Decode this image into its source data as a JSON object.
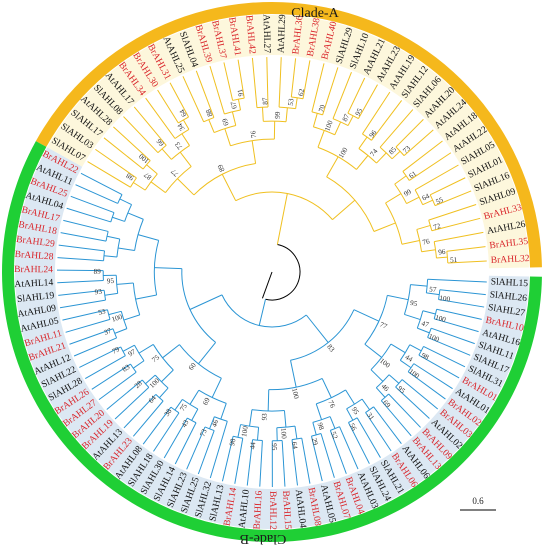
{
  "colors": {
    "cladeA_ring": "#f5b81c",
    "cladeA_fill": "#fdf7dc",
    "cladeA_branch": "#f0c020",
    "cladeB_ring": "#1fcf35",
    "cladeB_fill": "#dce8f3",
    "cladeB_branch": "#2b95d4",
    "label_highlight": "#d9252a",
    "label_default": "#111111"
  },
  "clades": {
    "cladeA": {
      "label": "Clade-A"
    },
    "cladeB": {
      "label": "Clade-B"
    }
  },
  "scale_bar": {
    "label": "0.6"
  },
  "leavesA": [
    "SlAHL07",
    "SlAHL03",
    "SlAHL17",
    "AtAHL28",
    "SlAHL08",
    "AtAHL17",
    "BrAHL34",
    "BrAHL30",
    "BrAHL31",
    "AtAHL25",
    "SlAHL04",
    "BrAHL39",
    "BrAHL37",
    "BrAHL41",
    "BrAHL42",
    "AtAHL27",
    "AtAHL29",
    "BrAHL36",
    "BrAHL38",
    "BrAHL40",
    "SlAHL29",
    "SlAHL10",
    "AtAHL21",
    "AtAHL23",
    "AtAHL19",
    "SlAHL12",
    "SlAHL06",
    "AtAHL20",
    "AtAHL24",
    "AtAHL18",
    "AtAHL22",
    "SlAHL05",
    "SlAHL01",
    "SlAHL16",
    "SlAHL09",
    "BrAHL33",
    "AtAHL26",
    "BrAHL35",
    "BrAHL32"
  ],
  "leavesB": [
    "SlAHL15",
    "SlAHL26",
    "SlAHL27",
    "BrAHL10",
    "AtAHL16",
    "SlAHL11",
    "SlAHL17",
    "SlAHL31",
    "BrAHL01",
    "AtAHL01",
    "BrAHL02",
    "BrAHL03",
    "AtAHL02",
    "BrAHL09",
    "BrAHL13",
    "AtAHL06",
    "BrAHL06",
    "SlAHL21",
    "SlAHL24",
    "AtAHL03",
    "BrAHL04",
    "BrAHL07",
    "AtAHL05",
    "BrAHL08",
    "AtAHL04",
    "BrAHL15",
    "BrAHL12",
    "BrAHL16",
    "AtAHL10",
    "BrAHL14",
    "SlAHL13",
    "SlAHL32",
    "SlAHL25",
    "SlAHL23",
    "SlAHL14",
    "SlAHL30",
    "SlAHL18",
    "AtAHL08",
    "BrAHL23",
    "AtAHL13",
    "BrAHL19",
    "BrAHL20",
    "BrAHL27",
    "BrAHL26",
    "SlAHL28",
    "SlAHL22",
    "AtAHL12",
    "BrAHL21",
    "BrAHL11",
    "AtAHL05",
    "AtAHL09",
    "SlAHL19",
    "AtAHL14",
    "BrAHL24",
    "BrAHL28",
    "BrAHL29",
    "BrAHL18",
    "BrAHL17",
    "AtAHL04",
    "BrAHL25",
    "AtAHL11",
    "BrAHL22"
  ],
  "bootstrapsA": [
    "98",
    "100",
    "87",
    "66",
    "64",
    "34",
    "73",
    "77",
    "88",
    "91",
    "67",
    "69",
    "87",
    "62",
    "53",
    "99",
    "76",
    "89",
    "70",
    "95",
    "87",
    "100",
    "96",
    "73",
    "85",
    "74",
    "100",
    "61",
    "55",
    "64",
    "99",
    "72",
    "51",
    "96",
    "76"
  ],
  "bootstrapsB": [
    "100",
    "57",
    "100",
    "100",
    "47",
    "95",
    "98",
    "100",
    "44",
    "95",
    "69",
    "46",
    "100",
    "77",
    "31",
    "56",
    "95",
    "52",
    "29",
    "98",
    "76",
    "64",
    "95",
    "100",
    "44",
    "98",
    "100",
    "93",
    "100",
    "83",
    "73",
    "46",
    "43",
    "38",
    "75",
    "69",
    "64",
    "28",
    "100",
    "83",
    "79",
    "97",
    "75",
    "60",
    "37",
    "53",
    "100",
    "93",
    "89",
    "95"
  ]
}
